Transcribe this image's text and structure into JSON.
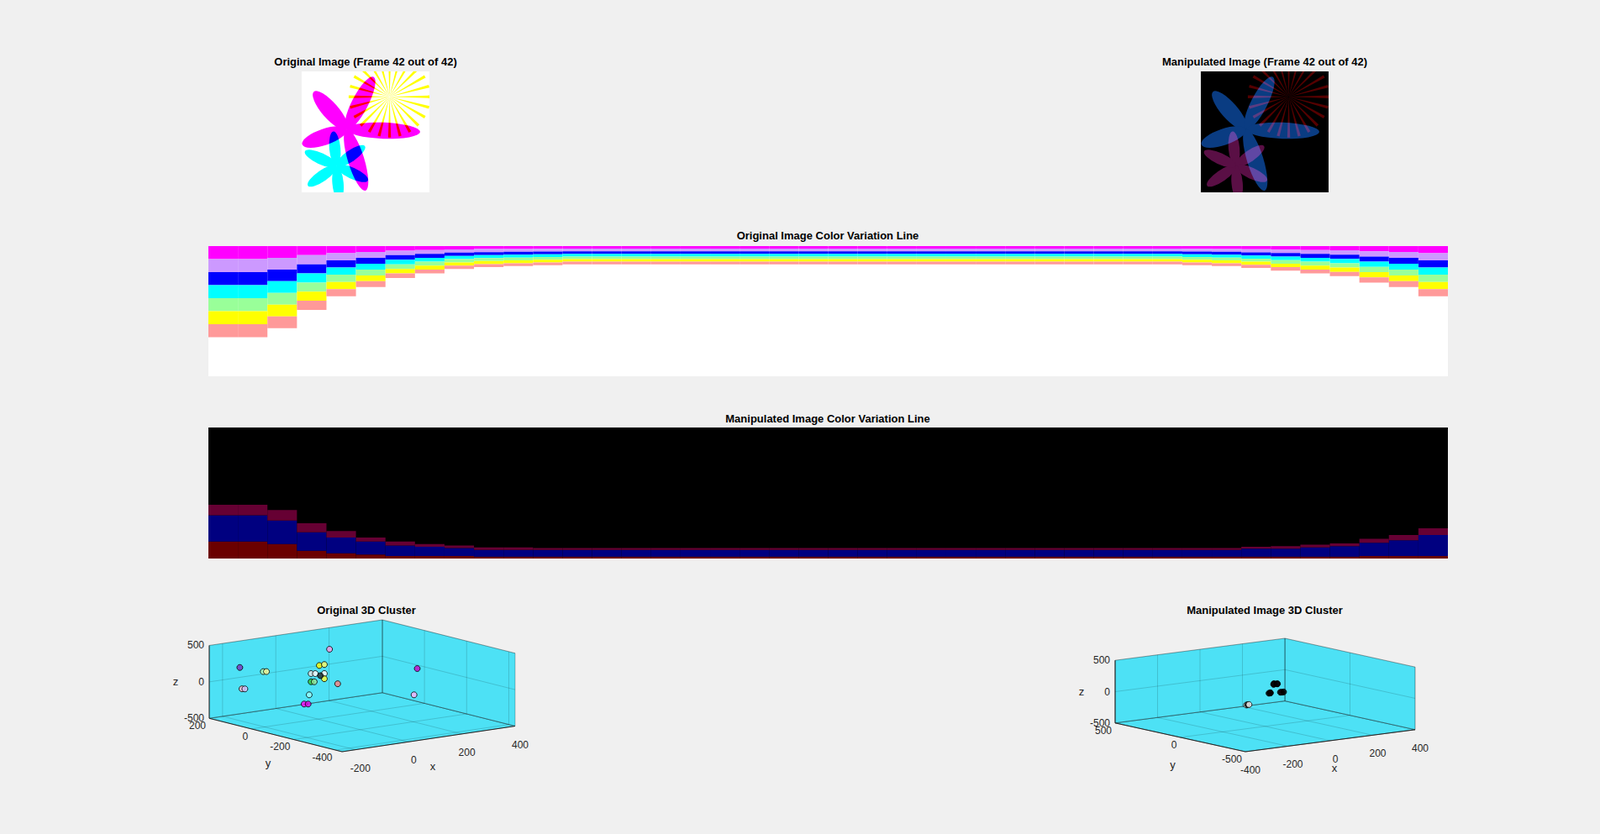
{
  "chart_data": [
    {
      "type": "image",
      "title": "Original Image (Frame 42 out of 42)",
      "color": "#ffffff",
      "colors": [
        "#ff00ff",
        "#ffff00",
        "#00ffff"
      ]
    },
    {
      "type": "image",
      "title": "Manipulated Image (Frame 42 out of 42)",
      "color": "#000000",
      "colors": [
        "#0a3c82",
        "#550000",
        "#5a0f45"
      ]
    },
    {
      "type": "bar",
      "title": "Original Image Color Variation Line",
      "stacked": true,
      "grid": false,
      "tick_labels": false,
      "color": "#ffffff",
      "ylim": [
        100,
        0
      ],
      "categories": [
        null,
        null,
        null,
        null,
        null,
        null,
        null,
        null,
        null,
        null,
        null,
        null,
        null,
        null,
        null,
        null,
        null,
        null,
        null,
        null,
        null,
        null,
        null,
        null,
        null,
        null,
        null,
        null,
        null,
        null,
        null,
        null,
        null,
        null,
        null,
        null,
        null,
        null,
        null,
        null,
        null,
        null
      ],
      "series": [
        {
          "color": "#ff00ff",
          "values": [
            10,
            10,
            9,
            7,
            5.5,
            4.5,
            3.5,
            3,
            2.5,
            2.3,
            2.2,
            2.1,
            2,
            2,
            2,
            2,
            2,
            2,
            2,
            2,
            2,
            2,
            2,
            2,
            2,
            2,
            2,
            2,
            2,
            2,
            2,
            2,
            2,
            2.1,
            2.2,
            2.4,
            2.7,
            3,
            3.3,
            4,
            4.5,
            5.5
          ]
        },
        {
          "color": "#cc99ff",
          "values": [
            10,
            10,
            9,
            7,
            5.5,
            4.5,
            3.5,
            3,
            2.5,
            2.3,
            2.2,
            2.1,
            2,
            2,
            2,
            2,
            2,
            2,
            2,
            2,
            2,
            2,
            2,
            2,
            2,
            2,
            2,
            2,
            2,
            2,
            2,
            2,
            2,
            2.1,
            2.2,
            2.4,
            2.7,
            3,
            3.3,
            4,
            4.5,
            5.5
          ]
        },
        {
          "color": "#0000ff",
          "values": [
            10,
            10,
            9,
            7,
            5.5,
            4.5,
            3.5,
            3,
            2.5,
            2.3,
            2.2,
            2.1,
            2,
            2,
            2,
            2,
            2,
            2,
            2,
            2,
            2,
            2,
            2,
            2,
            2,
            2,
            2,
            2,
            2,
            2,
            2,
            2,
            2,
            2.1,
            2.2,
            2.4,
            2.7,
            3,
            3.3,
            4,
            4.5,
            5.5
          ]
        },
        {
          "color": "#00ffff",
          "values": [
            10,
            10,
            9,
            7,
            5.5,
            4.5,
            3.5,
            3,
            2.5,
            2.3,
            2.2,
            2.1,
            2,
            2,
            2,
            2,
            2,
            2,
            2,
            2,
            2,
            2,
            2,
            2,
            2,
            2,
            2,
            2,
            2,
            2,
            2,
            2,
            2,
            2.1,
            2.2,
            2.4,
            2.7,
            3,
            3.3,
            4,
            4.5,
            5.5
          ]
        },
        {
          "color": "#99ff99",
          "values": [
            10,
            10,
            9,
            7,
            5.5,
            4.5,
            3.5,
            3,
            2.5,
            2.3,
            2.2,
            2.1,
            2,
            2,
            2,
            2,
            2,
            2,
            2,
            2,
            2,
            2,
            2,
            2,
            2,
            2,
            2,
            2,
            2,
            2,
            2,
            2,
            2,
            2.1,
            2.2,
            2.4,
            2.7,
            3,
            3.3,
            4,
            4.5,
            5.5
          ]
        },
        {
          "color": "#ffff00",
          "values": [
            10,
            10,
            9,
            7,
            5.5,
            4.5,
            3.5,
            3,
            2.5,
            2.3,
            2.2,
            2.1,
            2,
            2,
            2,
            2,
            2,
            2,
            2,
            2,
            2,
            2,
            2,
            2,
            2,
            2,
            2,
            2,
            2,
            2,
            2,
            2,
            2,
            2.1,
            2.2,
            2.4,
            2.7,
            3,
            3.3,
            4,
            4.5,
            5.5
          ]
        },
        {
          "color": "#ff9999",
          "values": [
            10,
            10,
            9,
            7,
            5.5,
            4.5,
            3.5,
            3,
            2.5,
            2.3,
            2.2,
            2.1,
            2,
            2,
            2,
            2,
            2,
            2,
            2,
            2,
            2,
            2,
            2,
            2,
            2,
            2,
            2,
            2,
            2,
            2,
            2,
            2,
            2,
            2.1,
            2.2,
            2.4,
            2.7,
            3,
            3.3,
            4,
            4.5,
            5.5
          ]
        }
      ]
    },
    {
      "type": "bar",
      "title": "Manipulated Image Color Variation Line",
      "stacked": true,
      "grid": false,
      "tick_labels": false,
      "color": "#000000",
      "ylim": [
        0,
        100
      ],
      "categories": [
        null,
        null,
        null,
        null,
        null,
        null,
        null,
        null,
        null,
        null,
        null,
        null,
        null,
        null,
        null,
        null,
        null,
        null,
        null,
        null,
        null,
        null,
        null,
        null,
        null,
        null,
        null,
        null,
        null,
        null,
        null,
        null,
        null,
        null,
        null,
        null,
        null,
        null,
        null,
        null,
        null,
        null
      ],
      "series": [
        {
          "color": "#6b0000",
          "values": [
            13,
            13,
            11,
            6,
            4,
            3,
            2,
            2,
            2,
            1.5,
            1.5,
            1.5,
            1.5,
            1.5,
            1.5,
            1.5,
            1.5,
            1.5,
            1.5,
            1.5,
            1.5,
            1.5,
            1.5,
            1.5,
            1.5,
            1.5,
            1.5,
            1.5,
            1.5,
            1.5,
            1.5,
            1.5,
            1.5,
            1.5,
            1.5,
            1.5,
            1.5,
            1.5,
            1.5,
            2,
            2,
            2
          ]
        },
        {
          "color": "#000080",
          "values": [
            20,
            20,
            18,
            14,
            12,
            10,
            8,
            7,
            6,
            5,
            5,
            5,
            5,
            5,
            5,
            5,
            5,
            5,
            5,
            5,
            5,
            5,
            5,
            5,
            5,
            5,
            5,
            5,
            5,
            5,
            5,
            5,
            5,
            5,
            5,
            6,
            6,
            7,
            8,
            10,
            12,
            16
          ]
        },
        {
          "color": "#660033",
          "values": [
            8,
            8,
            8,
            7,
            5,
            3,
            3,
            2,
            2,
            2,
            2,
            1.5,
            1.5,
            1.5,
            1.5,
            1.5,
            1.5,
            1.5,
            1.5,
            1.5,
            1.5,
            1.5,
            1.5,
            1.5,
            1.5,
            1.5,
            1.5,
            1.5,
            1.5,
            1.5,
            1.5,
            1.5,
            1.5,
            1.5,
            1.5,
            1.5,
            2,
            2,
            2,
            3,
            4,
            5
          ]
        }
      ]
    },
    {
      "type": "scatter3d",
      "title": "Original 3D Cluster",
      "xlabel": "x",
      "ylabel": "y",
      "zlabel": "z",
      "grid": true,
      "marker": "o",
      "color": "#4de1f5",
      "xlim": [
        -250,
        400
      ],
      "ylim": [
        -430,
        200
      ],
      "zlim": [
        -500,
        500
      ],
      "xticks": [
        -200,
        0,
        200,
        400
      ],
      "yticks": [
        -400,
        -200,
        0,
        200
      ],
      "zticks": [
        -500,
        0,
        500
      ],
      "x": [
        -185,
        -97,
        -85,
        -177,
        -166,
        102,
        -86,
        -67,
        -117,
        -101,
        -67,
        -117,
        -105,
        -67,
        -17,
        -124,
        -143,
        -128,
        182,
        170,
        -82
      ],
      "y": [
        137,
        137,
        137,
        137,
        137,
        74,
        -115,
        -115,
        -115,
        -115,
        -115,
        -115,
        -115,
        -115,
        -115,
        -115,
        -115,
        -115,
        -241,
        -241,
        -115
      ],
      "z": [
        208,
        104,
        98,
        -89,
        -96,
        349,
        365,
        368,
        271,
        262,
        244,
        159,
        152,
        173,
        77,
        -17,
        -133,
        -141,
        270,
        -84,
        224
      ],
      "colors": [
        "#7b2fbe",
        "#b3ffb3",
        "#ffff99",
        "#ffb3c6",
        "#d9c2ff",
        "#ff99e6",
        "#ffff00",
        "#ffff66",
        "#e6e6e6",
        "#ffffff",
        "#ffffff",
        "#33cc33",
        "#99e699",
        "#ffff33",
        "#ff8080",
        "#99ffff",
        "#ff00ff",
        "#e600e6",
        "#cc00cc",
        "#ffb3ff",
        "#262626"
      ]
    },
    {
      "type": "scatter3d",
      "title": "Manipulated Image 3D Cluster",
      "xlabel": "x",
      "ylabel": "y",
      "zlabel": "z",
      "grid": true,
      "marker": "o",
      "color": "#4de1f5",
      "xlim": [
        -400,
        400
      ],
      "ylim": [
        -500,
        500
      ],
      "zlim": [
        -500,
        500
      ],
      "xticks": [
        -400,
        -200,
        0,
        200,
        400
      ],
      "yticks": [
        -500,
        0,
        500
      ],
      "zticks": [
        -500,
        0,
        500
      ],
      "x": [
        40,
        48,
        52,
        56,
        18,
        24,
        28,
        72,
        78,
        84,
        -88,
        -82,
        -76
      ],
      "y": [
        0,
        10,
        -10,
        0,
        0,
        0,
        5,
        0,
        0,
        -5,
        0,
        0,
        0
      ],
      "z": [
        152,
        156,
        160,
        154,
        20,
        24,
        18,
        12,
        10,
        14,
        -121,
        -120,
        -119
      ],
      "colors": [
        "#1a0000",
        "#000000",
        "#0d0d26",
        "#000000",
        "#000000",
        "#260000",
        "#000000",
        "#000000",
        "#1a000d",
        "#000000",
        "#ffffff",
        "#000000",
        "#ffffff"
      ]
    }
  ]
}
